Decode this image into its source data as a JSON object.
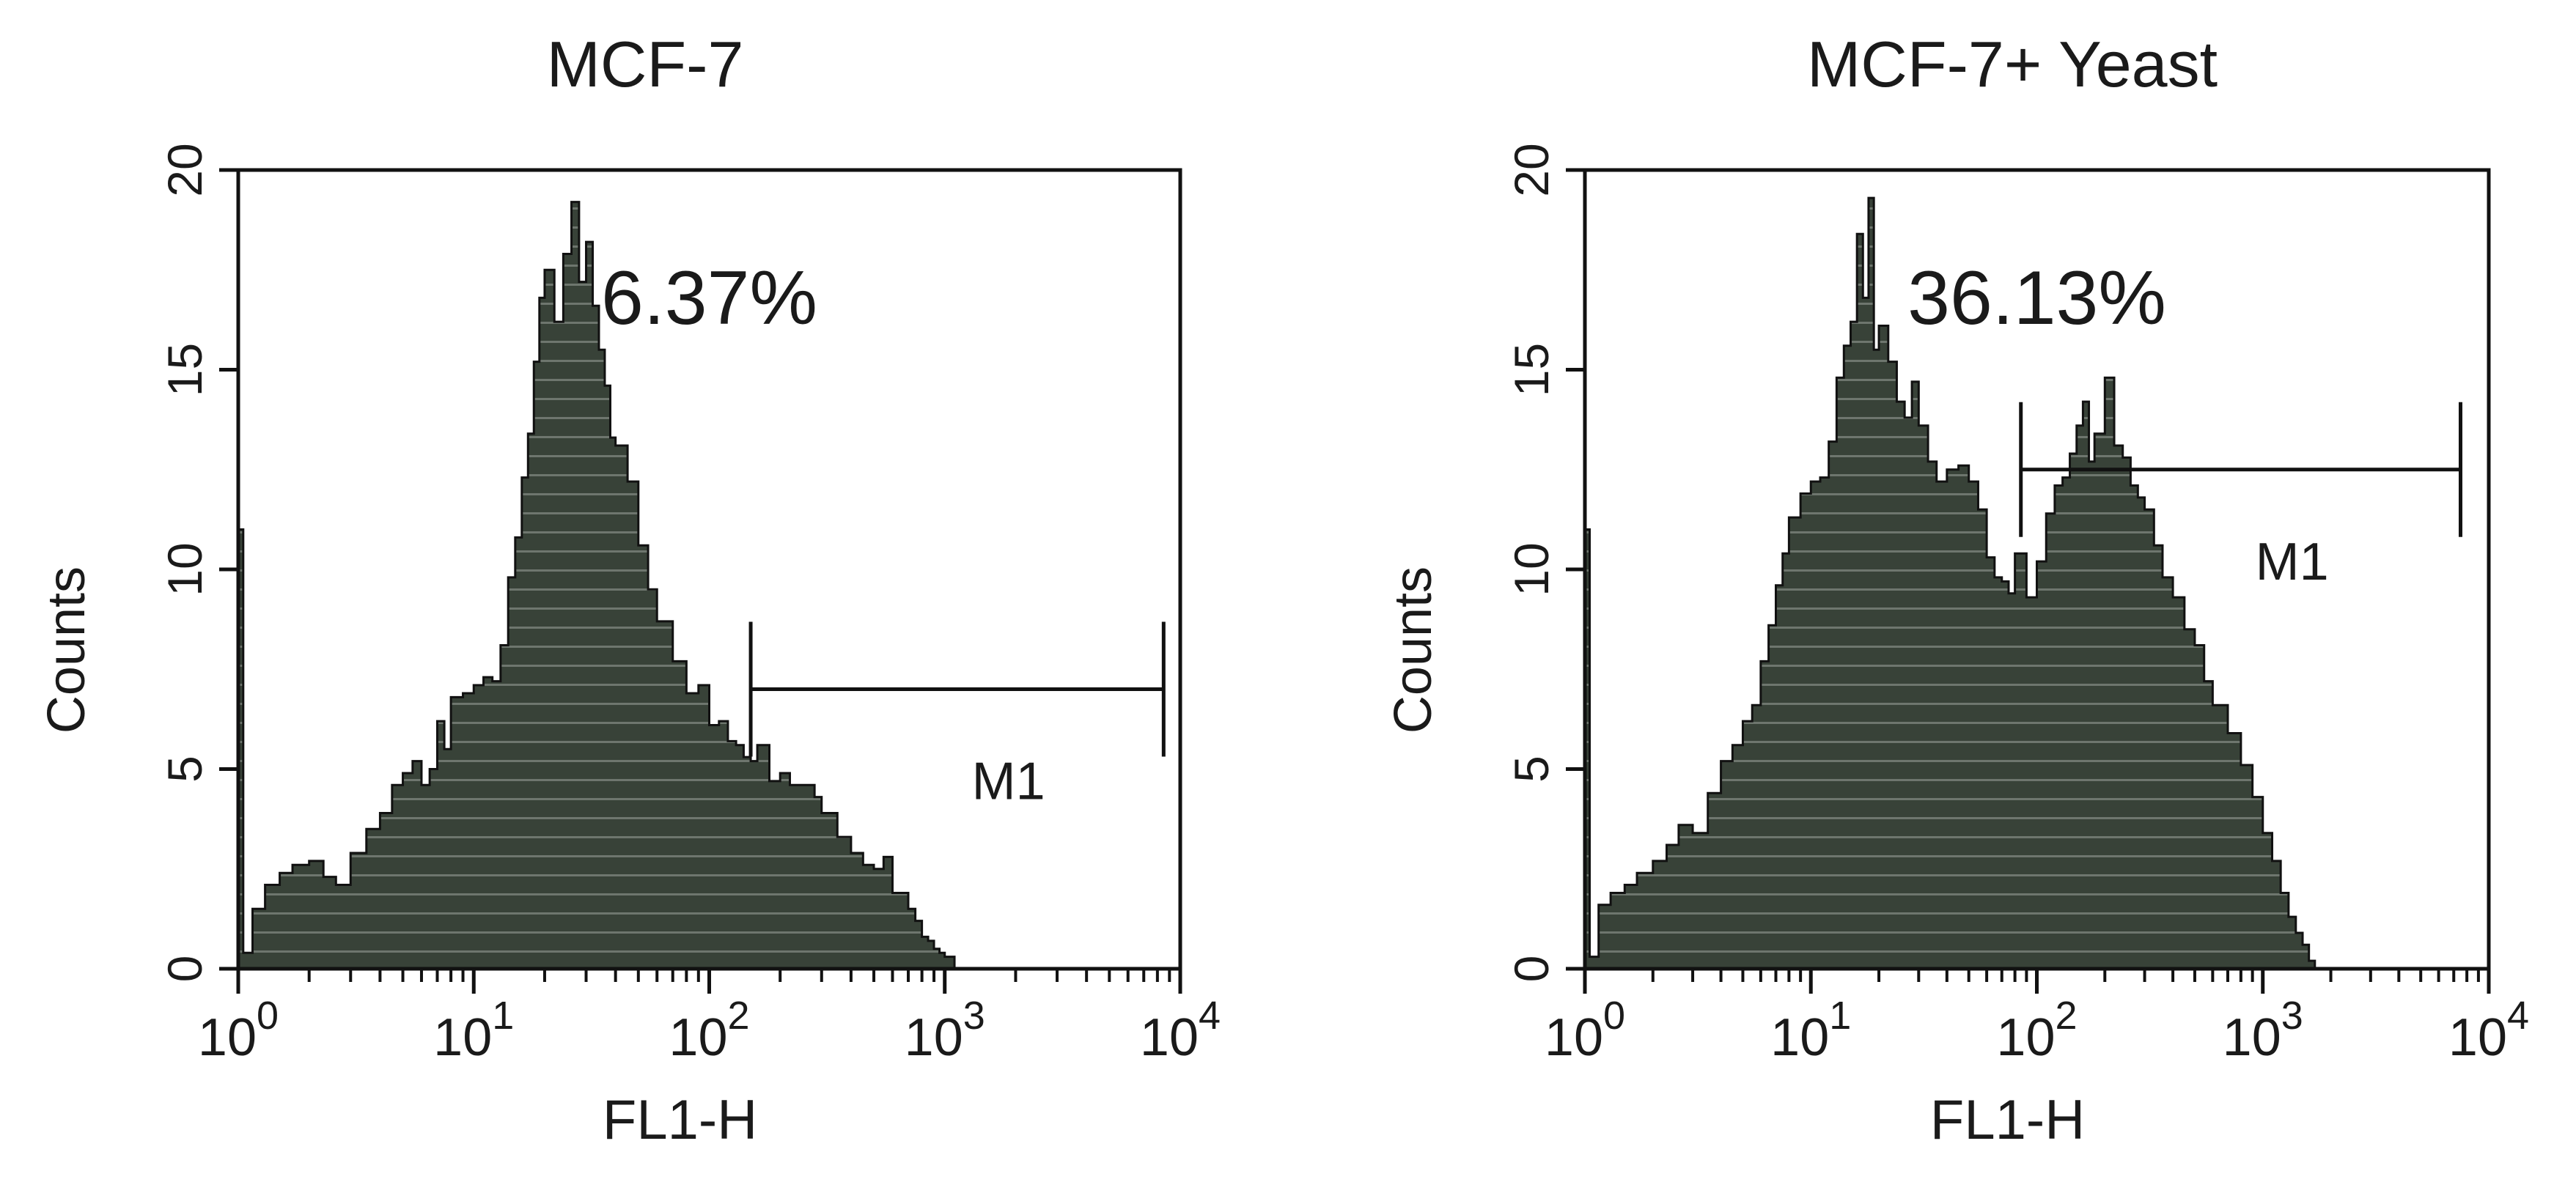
{
  "colors": {
    "fill": "#384238",
    "stripe": "#6e766e",
    "edge": "#111111",
    "ink": "#1a1a1a",
    "background": "#ffffff"
  },
  "chart_data": [
    {
      "type": "area",
      "title": "MCF-7",
      "xlabel": "FL1-H",
      "ylabel": "Counts",
      "x_scale": "log",
      "xlim": [
        1,
        10000
      ],
      "ylim": [
        0,
        20
      ],
      "y_ticks": [
        "0",
        "5",
        "10",
        "15",
        "20"
      ],
      "x_ticks": [
        {
          "base": "10",
          "exp": "0"
        },
        {
          "base": "10",
          "exp": "1"
        },
        {
          "base": "10",
          "exp": "2"
        },
        {
          "base": "10",
          "exp": "3"
        },
        {
          "base": "10",
          "exp": "4"
        }
      ],
      "annotation": "6.37%",
      "marker": {
        "label": "M1",
        "x_start": 150,
        "x_end": 8500,
        "y": 7
      },
      "series": [
        {
          "x": [
            1,
            1.05,
            1.15,
            1.3,
            1.5,
            1.7,
            2,
            2.3,
            2.6,
            3,
            3.5,
            4,
            4.5,
            5,
            5.5,
            6,
            6.5,
            7,
            7.5,
            8,
            9,
            10,
            11,
            12,
            13,
            14,
            15,
            16,
            17,
            18,
            19,
            20,
            22,
            24,
            26,
            28,
            30,
            32,
            34,
            36,
            38,
            40,
            45,
            50,
            55,
            60,
            70,
            80,
            90,
            100,
            110,
            120,
            130,
            140,
            150,
            160,
            180,
            200,
            220,
            250,
            280,
            300,
            350,
            400,
            450,
            500,
            550,
            600,
            650,
            700,
            750,
            800,
            850,
            900,
            950,
            1000,
            1100
          ],
          "y": [
            11,
            0.4,
            1.5,
            2.1,
            2.4,
            2.6,
            2.7,
            2.3,
            2.1,
            2.9,
            3.5,
            3.9,
            4.6,
            4.9,
            5.2,
            4.6,
            5,
            6.2,
            5.5,
            6.8,
            6.9,
            7.1,
            7.3,
            7.2,
            8.1,
            9.8,
            10.8,
            12.3,
            13.4,
            15.2,
            16.8,
            17.5,
            16.2,
            17.9,
            19.2,
            17.2,
            18.2,
            16.6,
            15.5,
            14.6,
            13.3,
            13.1,
            12.2,
            10.6,
            9.5,
            8.7,
            7.7,
            6.9,
            7.1,
            6.1,
            6.2,
            5.7,
            5.6,
            5.3,
            5.2,
            5.6,
            4.7,
            4.9,
            4.6,
            4.6,
            4.3,
            3.9,
            3.3,
            2.9,
            2.6,
            2.5,
            2.8,
            1.9,
            1.9,
            1.5,
            1.2,
            0.8,
            0.7,
            0.5,
            0.4,
            0.3,
            0
          ]
        }
      ]
    },
    {
      "type": "area",
      "title": "MCF-7+ Yeast",
      "xlabel": "FL1-H",
      "ylabel": "Counts",
      "x_scale": "log",
      "xlim": [
        1,
        10000
      ],
      "ylim": [
        0,
        20
      ],
      "y_ticks": [
        "0",
        "5",
        "10",
        "15",
        "20"
      ],
      "x_ticks": [
        {
          "base": "10",
          "exp": "0"
        },
        {
          "base": "10",
          "exp": "1"
        },
        {
          "base": "10",
          "exp": "2"
        },
        {
          "base": "10",
          "exp": "3"
        },
        {
          "base": "10",
          "exp": "4"
        }
      ],
      "annotation": "36.13%",
      "marker": {
        "label": "M1",
        "x_start": 85,
        "x_end": 7500,
        "y": 12.5
      },
      "series": [
        {
          "x": [
            1,
            1.05,
            1.15,
            1.3,
            1.5,
            1.7,
            2,
            2.3,
            2.6,
            3,
            3.5,
            4,
            4.5,
            5,
            5.5,
            6,
            6.5,
            7,
            7.5,
            8,
            9,
            10,
            11,
            12,
            13,
            14,
            15,
            16,
            17,
            18,
            19,
            20,
            22,
            24,
            26,
            28,
            30,
            33,
            36,
            40,
            45,
            50,
            55,
            60,
            65,
            70,
            75,
            80,
            90,
            100,
            110,
            120,
            130,
            140,
            150,
            160,
            170,
            180,
            200,
            220,
            240,
            260,
            280,
            300,
            330,
            360,
            400,
            450,
            500,
            550,
            600,
            700,
            800,
            900,
            1000,
            1100,
            1200,
            1300,
            1400,
            1500,
            1600,
            1700
          ],
          "y": [
            11,
            0.3,
            1.6,
            1.9,
            2.1,
            2.4,
            2.7,
            3.1,
            3.6,
            3.4,
            4.4,
            5.2,
            5.6,
            6.2,
            6.6,
            7.7,
            8.6,
            9.6,
            10.4,
            11.3,
            11.9,
            12.2,
            12.3,
            13.2,
            14.8,
            15.6,
            16.2,
            18.4,
            16.8,
            19.3,
            15.5,
            16.1,
            15.2,
            14.2,
            13.8,
            14.7,
            13.6,
            12.7,
            12.2,
            12.5,
            12.6,
            12.2,
            11.5,
            10.3,
            9.8,
            9.7,
            9.4,
            10.4,
            9.3,
            10.2,
            11.4,
            12.1,
            12.3,
            12.9,
            13.6,
            14.2,
            12.7,
            13.4,
            14.8,
            13.1,
            12.8,
            12.1,
            11.8,
            11.5,
            10.6,
            9.8,
            9.3,
            8.5,
            8.1,
            7.2,
            6.6,
            5.9,
            5.1,
            4.3,
            3.4,
            2.7,
            1.9,
            1.3,
            0.9,
            0.6,
            0.2,
            0
          ]
        }
      ]
    }
  ]
}
